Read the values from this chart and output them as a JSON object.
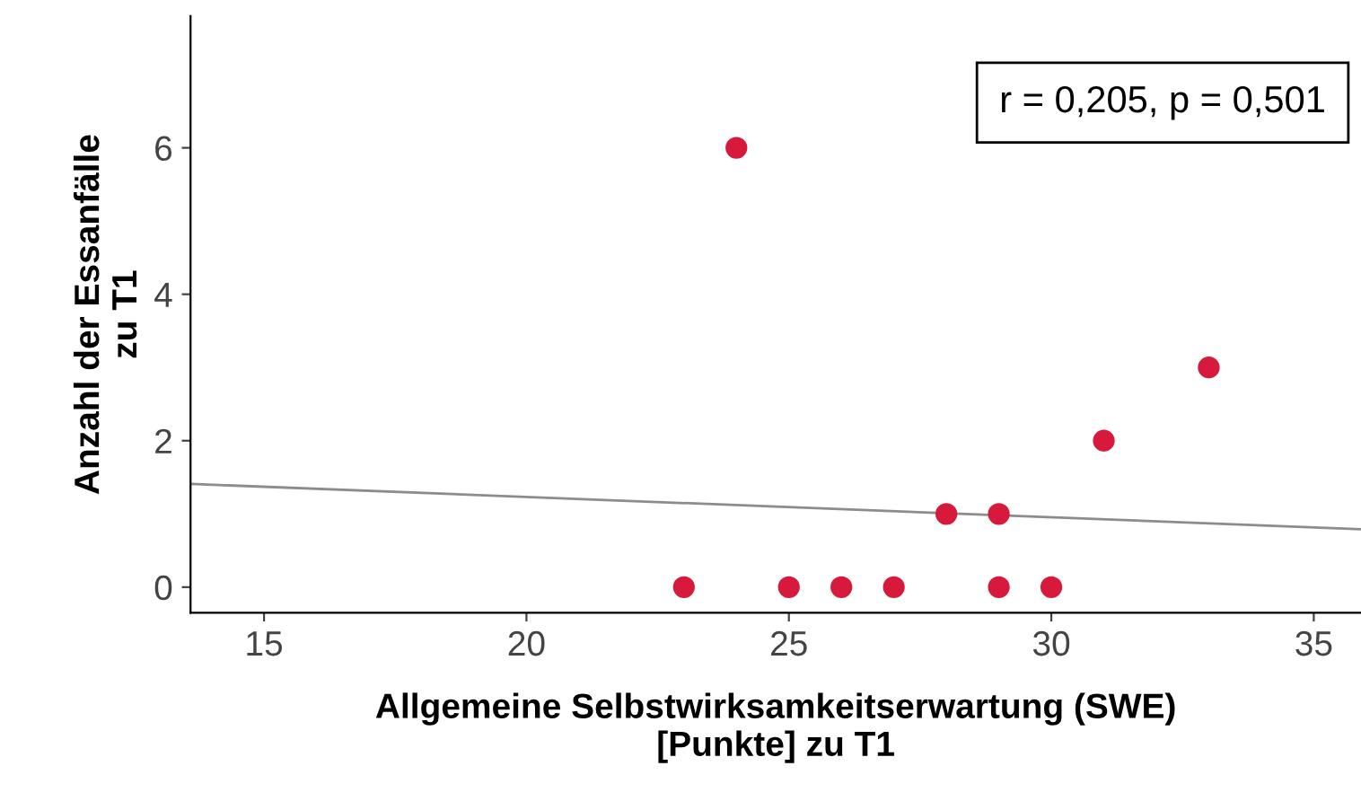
{
  "chart_data": {
    "type": "scatter",
    "xlabel": "Allgemeine Selbstwirksamkeitserwartung (SWE)\n[Punkte] zu T1",
    "ylabel": "Anzahl der Essanfälle\nzu T1",
    "x": [
      23,
      24,
      25,
      26,
      27,
      28,
      29,
      29,
      30,
      31,
      33
    ],
    "series": [
      {
        "color": "#d71a3c",
        "marker": "circle",
        "values": [
          0,
          6,
          0,
          0,
          0,
          1,
          1,
          0,
          0,
          2,
          3
        ]
      },
      {
        "type": "line",
        "color": "#8c8c8c",
        "x": [
          13.6,
          35.9
        ],
        "values": [
          1.41,
          0.79
        ]
      }
    ],
    "xlim": [
      13.6,
      35.9
    ],
    "ylim": [
      -0.35,
      7.8
    ],
    "xticks": [
      15,
      20,
      25,
      30,
      35
    ],
    "yticks": [
      0,
      2,
      4,
      6
    ],
    "annotations": [
      "r = 0,205, p = 0,501"
    ],
    "grid": false,
    "legend": false
  }
}
